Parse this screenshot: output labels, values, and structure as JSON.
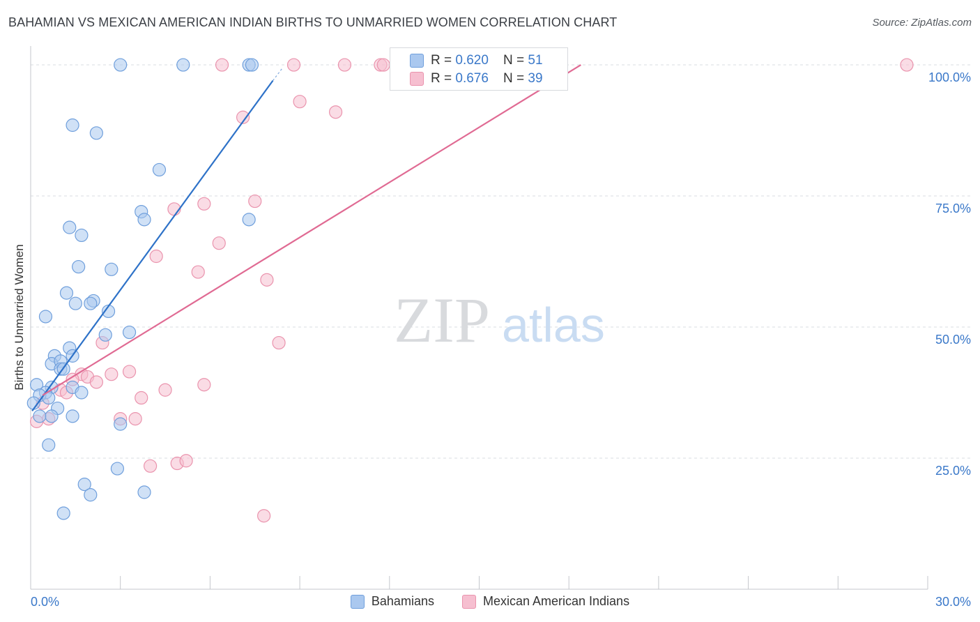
{
  "title": "BAHAMIAN VS MEXICAN AMERICAN INDIAN BIRTHS TO UNMARRIED WOMEN CORRELATION CHART",
  "source": "Source: ZipAtlas.com",
  "watermark": {
    "zip": "ZIP",
    "atlas": "atlas"
  },
  "colors": {
    "blue_fill": "#aac8ef",
    "blue_stroke": "#6f9fdc",
    "blue_line": "#2e72c8",
    "pink_fill": "#f6bfd0",
    "pink_stroke": "#ea93ad",
    "pink_line": "#e06a93",
    "tick_text": "#3a78c9",
    "grid": "#d9dce0"
  },
  "legend_stats": {
    "r_label": "R = ",
    "n_label": "N = ",
    "rows": [
      {
        "series": "Bahamians",
        "r": "0.620",
        "n": "51"
      },
      {
        "series": "Mexican American Indians",
        "r": "0.676",
        "n": "39"
      }
    ]
  },
  "chart_data": {
    "type": "scatter",
    "title": "BAHAMIAN VS MEXICAN AMERICAN INDIAN BIRTHS TO UNMARRIED WOMEN CORRELATION CHART",
    "xlabel": "",
    "ylabel": "Births to Unmarried Women",
    "xlim": [
      0,
      30
    ],
    "ylim": [
      0,
      102
    ],
    "x_tick_labels": [
      "0.0%",
      "30.0%"
    ],
    "y_ticks": [
      25,
      50,
      75,
      100
    ],
    "y_tick_labels": [
      "25.0%",
      "50.0%",
      "75.0%",
      "100.0%"
    ],
    "grid": true,
    "legend_position": "bottom",
    "series": [
      {
        "name": "Bahamians",
        "trend": {
          "x": [
            0.05,
            8.1
          ],
          "y": [
            34.0,
            97.0
          ]
        },
        "points": [
          [
            3.0,
            100
          ],
          [
            5.1,
            100
          ],
          [
            7.3,
            100
          ],
          [
            7.4,
            100
          ],
          [
            1.4,
            88.5
          ],
          [
            2.2,
            87.0
          ],
          [
            4.3,
            80.0
          ],
          [
            3.7,
            72.0
          ],
          [
            3.8,
            70.5
          ],
          [
            7.3,
            70.5
          ],
          [
            1.3,
            69.0
          ],
          [
            1.7,
            67.5
          ],
          [
            1.6,
            61.5
          ],
          [
            2.7,
            61.0
          ],
          [
            1.2,
            56.5
          ],
          [
            1.5,
            54.5
          ],
          [
            2.1,
            55.0
          ],
          [
            2.0,
            54.5
          ],
          [
            2.6,
            53.0
          ],
          [
            0.5,
            52.0
          ],
          [
            2.5,
            48.5
          ],
          [
            3.3,
            49.0
          ],
          [
            1.3,
            46.0
          ],
          [
            0.8,
            44.5
          ],
          [
            1.4,
            44.5
          ],
          [
            0.7,
            43.0
          ],
          [
            1.0,
            43.5
          ],
          [
            1.0,
            42.0
          ],
          [
            1.1,
            42.0
          ],
          [
            0.2,
            39.0
          ],
          [
            0.7,
            38.5
          ],
          [
            1.4,
            38.5
          ],
          [
            0.5,
            37.5
          ],
          [
            0.3,
            37.0
          ],
          [
            0.6,
            36.5
          ],
          [
            1.7,
            37.5
          ],
          [
            0.1,
            35.5
          ],
          [
            0.9,
            34.5
          ],
          [
            0.3,
            33.0
          ],
          [
            0.7,
            33.0
          ],
          [
            1.4,
            33.0
          ],
          [
            3.0,
            31.5
          ],
          [
            0.6,
            27.5
          ],
          [
            2.9,
            23.0
          ],
          [
            1.8,
            20.0
          ],
          [
            2.0,
            18.0
          ],
          [
            3.8,
            18.5
          ],
          [
            1.1,
            14.5
          ]
        ]
      },
      {
        "name": "Mexican American Indians",
        "trend": {
          "x": [
            0.4,
            18.4
          ],
          "y": [
            37.0,
            100.0
          ]
        },
        "points": [
          [
            6.4,
            100
          ],
          [
            8.8,
            100
          ],
          [
            10.5,
            100
          ],
          [
            11.7,
            100
          ],
          [
            11.8,
            100
          ],
          [
            29.3,
            100
          ],
          [
            9.0,
            93.0
          ],
          [
            10.2,
            91.0
          ],
          [
            7.1,
            90.0
          ],
          [
            5.8,
            73.5
          ],
          [
            7.5,
            74.0
          ],
          [
            4.8,
            72.5
          ],
          [
            6.3,
            66.0
          ],
          [
            4.2,
            63.5
          ],
          [
            5.6,
            60.5
          ],
          [
            7.9,
            59.0
          ],
          [
            2.4,
            47.0
          ],
          [
            8.3,
            47.0
          ],
          [
            3.3,
            41.5
          ],
          [
            2.7,
            41.0
          ],
          [
            1.7,
            41.0
          ],
          [
            1.9,
            40.5
          ],
          [
            2.2,
            39.5
          ],
          [
            1.4,
            40.0
          ],
          [
            5.8,
            39.0
          ],
          [
            4.5,
            38.0
          ],
          [
            1.0,
            38.0
          ],
          [
            1.2,
            37.5
          ],
          [
            3.7,
            36.5
          ],
          [
            0.4,
            35.5
          ],
          [
            0.6,
            32.5
          ],
          [
            0.2,
            32.0
          ],
          [
            3.0,
            32.5
          ],
          [
            3.5,
            32.5
          ],
          [
            4.0,
            23.5
          ],
          [
            4.9,
            24.0
          ],
          [
            5.2,
            24.5
          ],
          [
            7.8,
            14.0
          ]
        ]
      }
    ]
  }
}
